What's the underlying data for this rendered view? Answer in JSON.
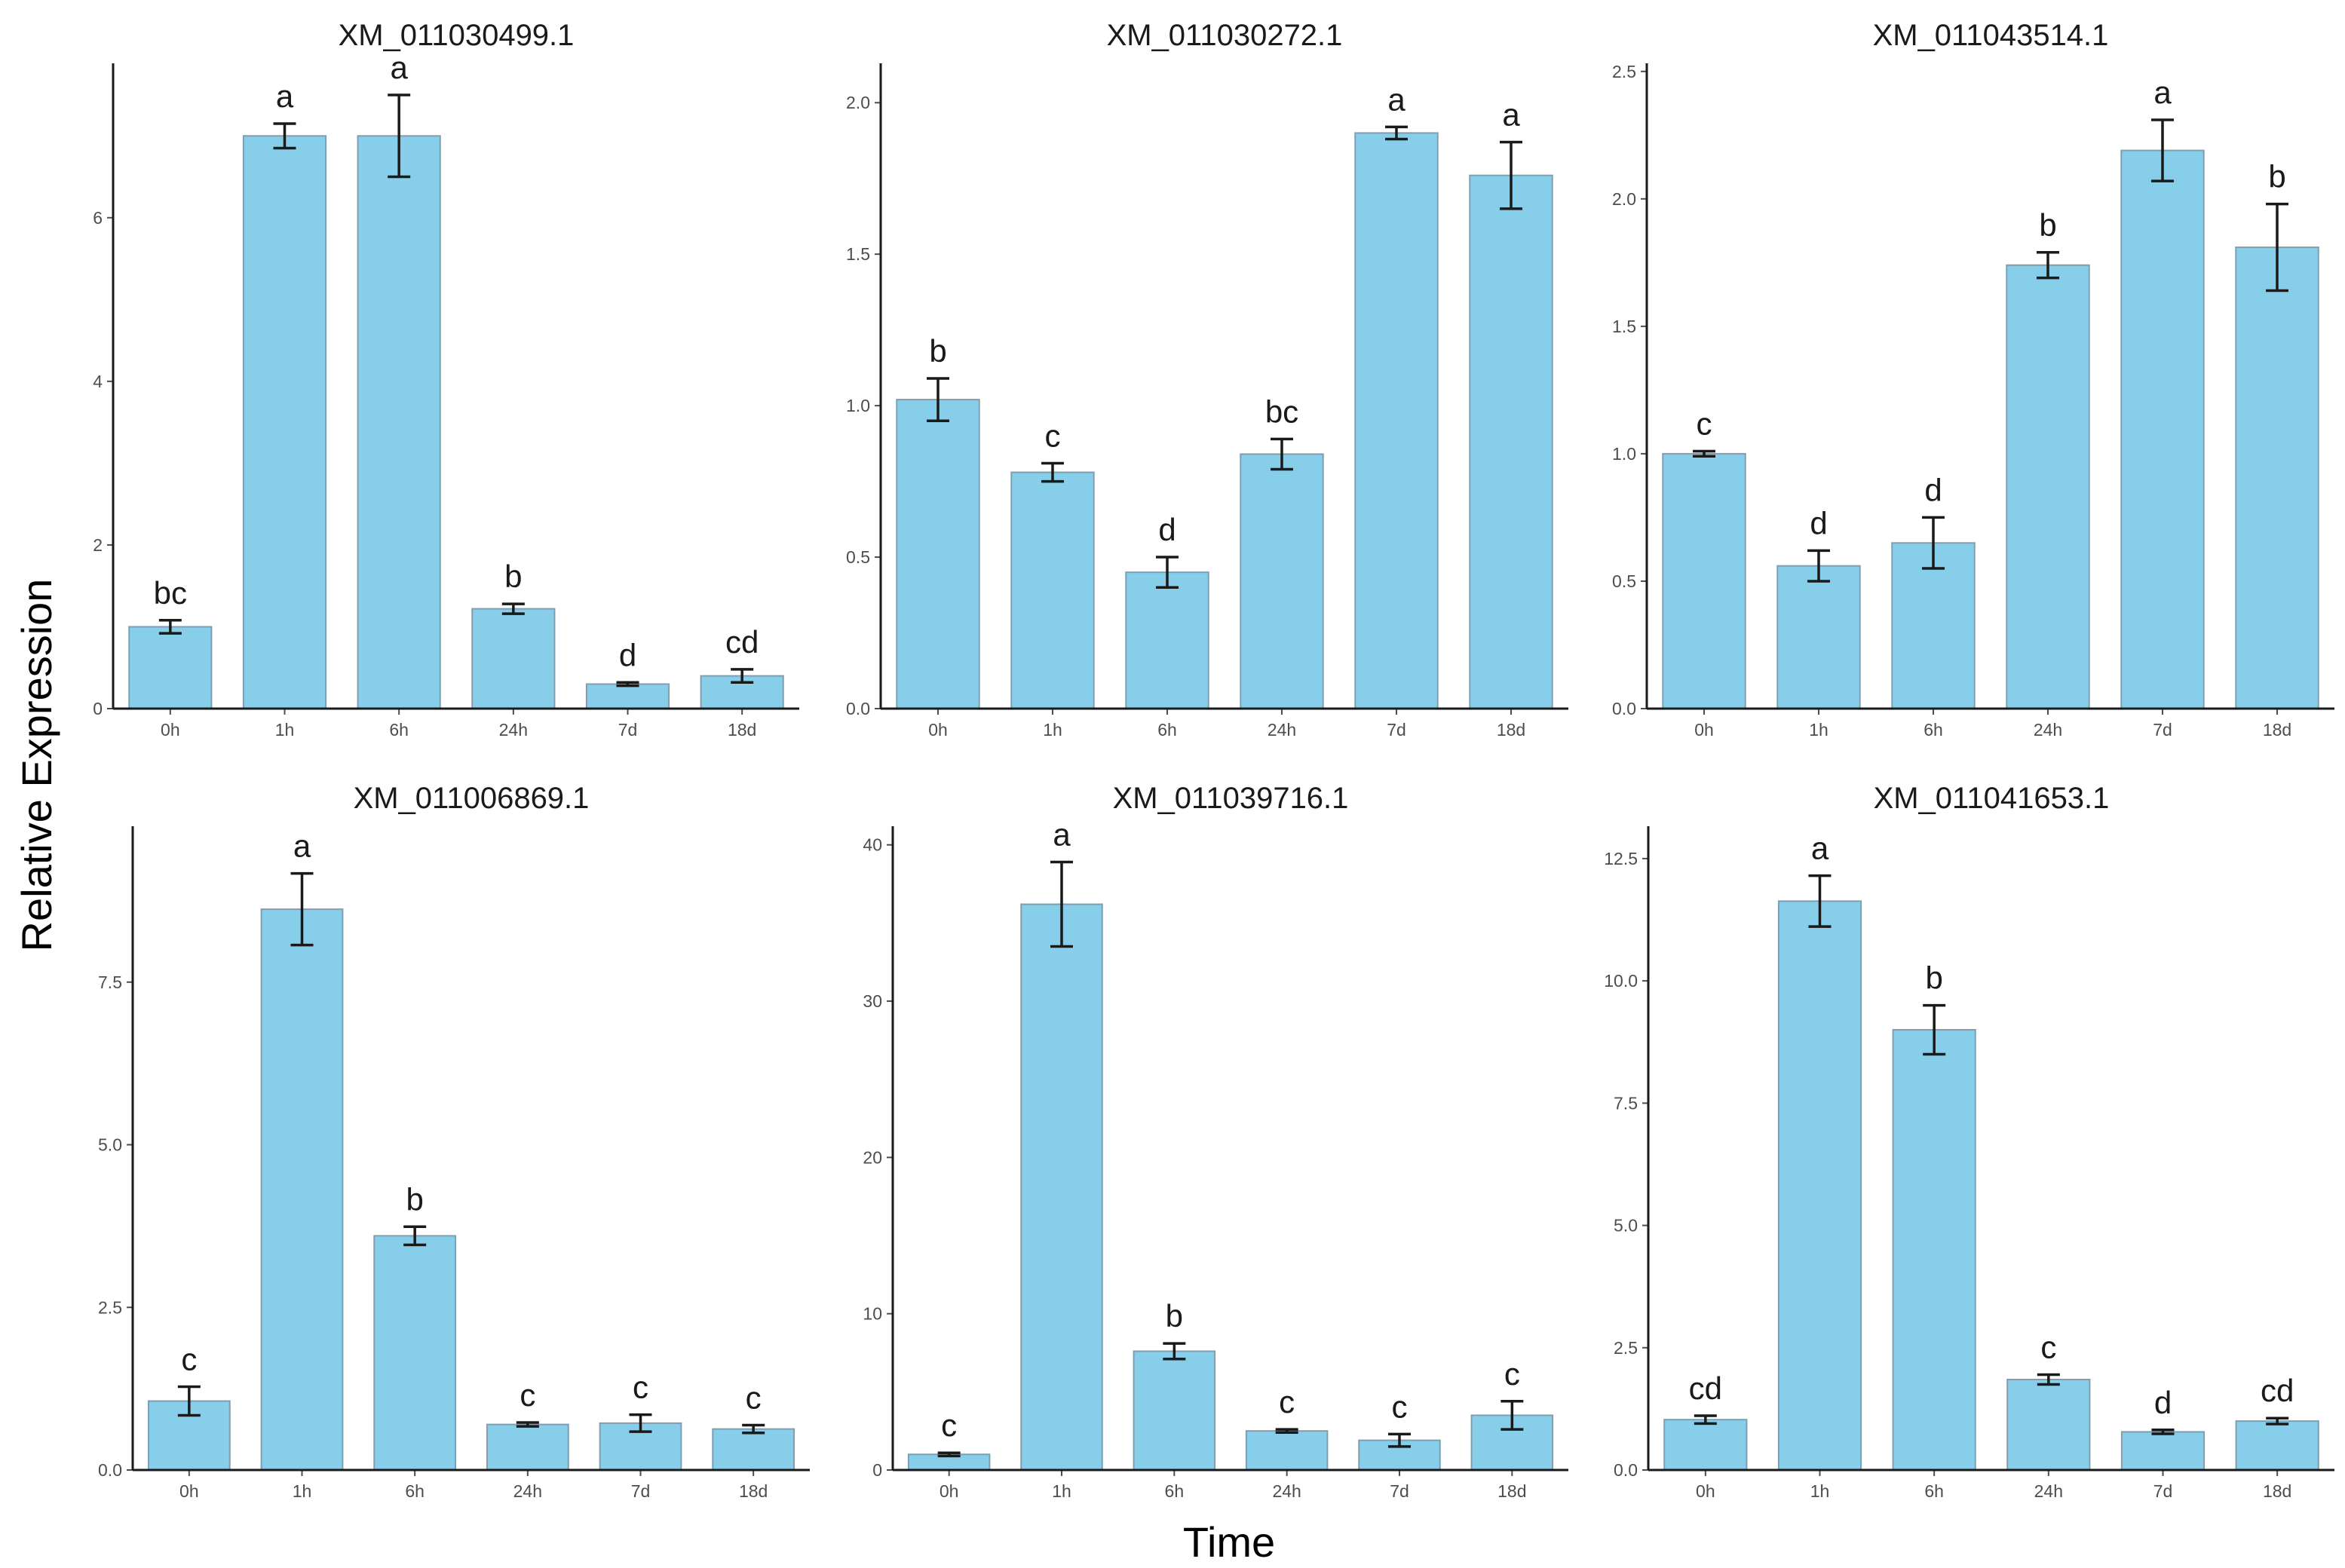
{
  "xlabel": "Time",
  "ylabel": "Relative Expression",
  "colors": {
    "bar_fill": "#87ceeb",
    "bar_stroke": "#7f9fb0",
    "ink": "#1a1a1a"
  },
  "chart_data": [
    {
      "type": "bar",
      "title": "XM_011030499.1",
      "categories": [
        "0h",
        "1h",
        "6h",
        "24h",
        "7d",
        "18d"
      ],
      "values": [
        1.0,
        7.0,
        7.0,
        1.22,
        0.3,
        0.4
      ],
      "errors": [
        0.08,
        0.15,
        0.5,
        0.06,
        0.02,
        0.08
      ],
      "significance": [
        "bc",
        "a",
        "a",
        "b",
        "d",
        "cd"
      ],
      "ylim": [
        0,
        7.85
      ],
      "yticks": [
        0,
        2,
        4,
        6
      ],
      "ytick_labels": [
        "0",
        "2",
        "4",
        "6"
      ]
    },
    {
      "type": "bar",
      "title": "XM_011030272.1",
      "categories": [
        "0h",
        "1h",
        "6h",
        "24h",
        "7d",
        "18d"
      ],
      "values": [
        1.02,
        0.78,
        0.45,
        0.84,
        1.9,
        1.76
      ],
      "errors": [
        0.07,
        0.03,
        0.05,
        0.05,
        0.02,
        0.11
      ],
      "significance": [
        "b",
        "c",
        "d",
        "bc",
        "a",
        "a"
      ],
      "ylim": [
        0,
        2.12
      ],
      "yticks": [
        0,
        0.5,
        1,
        1.5,
        2
      ],
      "ytick_labels": [
        "0.0",
        "0.5",
        "1.0",
        "1.5",
        "2.0"
      ]
    },
    {
      "type": "bar",
      "title": "XM_011043514.1",
      "categories": [
        "0h",
        "1h",
        "6h",
        "24h",
        "7d",
        "18d"
      ],
      "values": [
        1.0,
        0.56,
        0.65,
        1.74,
        2.19,
        1.81
      ],
      "errors": [
        0.01,
        0.06,
        0.1,
        0.05,
        0.12,
        0.17
      ],
      "significance": [
        "c",
        "d",
        "d",
        "b",
        "a",
        "b"
      ],
      "ylim": [
        0,
        2.52
      ],
      "yticks": [
        0,
        0.5,
        1,
        1.5,
        2,
        2.5
      ],
      "ytick_labels": [
        "0.0",
        "0.5",
        "1.0",
        "1.5",
        "2.0",
        "2.5"
      ]
    },
    {
      "type": "bar",
      "title": "XM_011006869.1",
      "categories": [
        "0h",
        "1h",
        "6h",
        "24h",
        "7d",
        "18d"
      ],
      "values": [
        1.06,
        8.62,
        3.6,
        0.7,
        0.72,
        0.63
      ],
      "errors": [
        0.22,
        0.55,
        0.14,
        0.03,
        0.13,
        0.06
      ],
      "significance": [
        "c",
        "a",
        "b",
        "c",
        "c",
        "c"
      ],
      "ylim": [
        0,
        9.85
      ],
      "yticks": [
        0,
        2.5,
        5,
        7.5
      ],
      "ytick_labels": [
        "0.0",
        "2.5",
        "5.0",
        "7.5"
      ]
    },
    {
      "type": "bar",
      "title": "XM_011039716.1",
      "categories": [
        "0h",
        "1h",
        "6h",
        "24h",
        "7d",
        "18d"
      ],
      "values": [
        1.0,
        36.2,
        7.6,
        2.5,
        1.9,
        3.5
      ],
      "errors": [
        0.1,
        2.7,
        0.5,
        0.1,
        0.4,
        0.9
      ],
      "significance": [
        "c",
        "a",
        "b",
        "c",
        "c",
        "c"
      ],
      "ylim": [
        0,
        41
      ],
      "yticks": [
        0,
        10,
        20,
        30,
        40
      ],
      "ytick_labels": [
        "0",
        "10",
        "20",
        "30",
        "40"
      ]
    },
    {
      "type": "bar",
      "title": "XM_011041653.1",
      "categories": [
        "0h",
        "1h",
        "6h",
        "24h",
        "7d",
        "18d"
      ],
      "values": [
        1.03,
        11.63,
        9.0,
        1.85,
        0.78,
        1.0
      ],
      "errors": [
        0.08,
        0.52,
        0.5,
        0.1,
        0.04,
        0.06
      ],
      "significance": [
        "cd",
        "a",
        "b",
        "c",
        "d",
        "cd"
      ],
      "ylim": [
        0,
        13.1
      ],
      "yticks": [
        0,
        2.5,
        5,
        7.5,
        10,
        12.5
      ],
      "ytick_labels": [
        "0.0",
        "2.5",
        "5.0",
        "7.5",
        "10.0",
        "12.5"
      ]
    }
  ]
}
